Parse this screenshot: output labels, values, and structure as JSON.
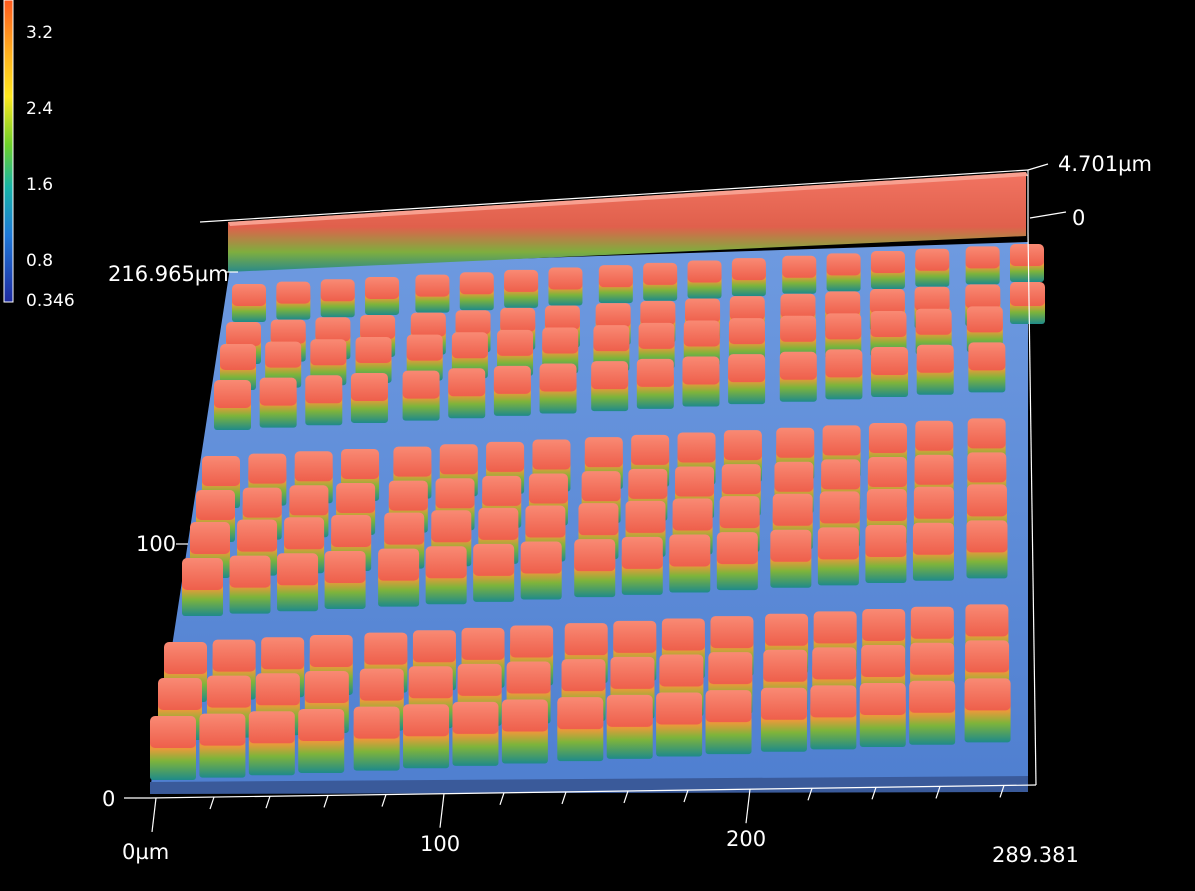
{
  "colorbar": {
    "ticks": [
      "3.2",
      "2.4",
      "1.6",
      "0.8",
      "0.346"
    ],
    "gradient": [
      "#ff5a1e",
      "#ffb21e",
      "#ffe81e",
      "#6cd02a",
      "#17b4a8",
      "#1e78d8",
      "#1e2aa0"
    ]
  },
  "axes": {
    "x_labels": [
      "0µm",
      "100",
      "200",
      "289.381"
    ],
    "y_labels": [
      "216.965µm",
      "100",
      "0"
    ],
    "z_labels": [
      "4.701µm",
      "0"
    ]
  },
  "colors": {
    "pillar_top": "#f06a56",
    "pillar_base": "#1f8a8a",
    "substrate": "#5f8fd8",
    "ridge": "#f27462"
  }
}
